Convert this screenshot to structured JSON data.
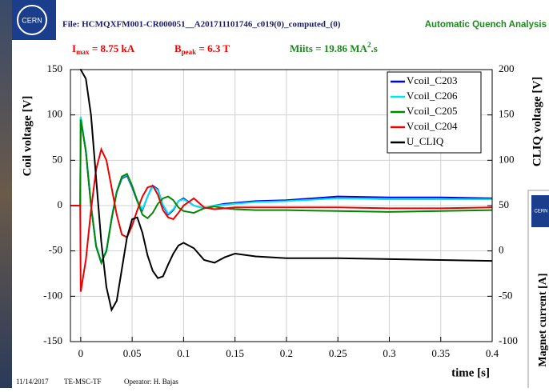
{
  "header": {
    "file": "File: HCMQXFM001-CR000051__A201711101746_c019(0)_computed_(0)",
    "app": "Automatic Quench Analysis",
    "imax": {
      "symbol": "I",
      "subscript": "max",
      "text": " = 8.75 kA"
    },
    "bpeak": {
      "symbol": "B",
      "subscript": "peak",
      "text": " = 6.3 T"
    },
    "miits": {
      "text": "Miits = 19.86 MA",
      "superscript": "2",
      "suffix": ".s"
    },
    "logo": "CERN"
  },
  "footer": {
    "date": "11/14/2017",
    "group": "TE-MSC-TF",
    "operator": "Operator: H. Bajas"
  },
  "background_panel": {
    "y_label": "Magnet current [A]",
    "logo": "CERN"
  },
  "chart_data": {
    "type": "line",
    "y_label": "Coil voltage [V]",
    "y2_label": "CLIQ voltage [V]",
    "x_label": "time [s]",
    "x": [
      -0.01,
      -0.0005,
      0,
      0.005,
      0.01,
      0.015,
      0.02,
      0.025,
      0.03,
      0.035,
      0.04,
      0.045,
      0.05,
      0.055,
      0.06,
      0.065,
      0.07,
      0.075,
      0.08,
      0.085,
      0.09,
      0.095,
      0.1,
      0.11,
      0.12,
      0.13,
      0.14,
      0.15,
      0.17,
      0.2,
      0.25,
      0.3,
      0.35,
      0.4
    ],
    "series": [
      {
        "name": "Vcoil_C203",
        "color": "#0000ee",
        "values": [
          0,
          0,
          97,
          60,
          0,
          -45,
          -63,
          -50,
          -15,
          15,
          30,
          33,
          20,
          5,
          -5,
          10,
          22,
          18,
          0,
          -10,
          -5,
          5,
          8,
          0,
          -3,
          0,
          2,
          3,
          5,
          6,
          10,
          9,
          9,
          8
        ]
      },
      {
        "name": "Vcoil_C206",
        "color": "#00e5ee",
        "values": [
          0,
          0,
          98,
          61,
          1,
          -44,
          -62,
          -49,
          -14,
          16,
          31,
          34,
          21,
          6,
          -4,
          10,
          21,
          17,
          1,
          -9,
          -4,
          5,
          7,
          0,
          -3,
          0,
          1,
          2,
          4,
          5,
          8,
          7,
          7,
          7
        ]
      },
      {
        "name": "Vcoil_C205",
        "color": "#008800",
        "values": [
          0,
          0,
          95,
          60,
          0,
          -45,
          -63,
          -50,
          -15,
          15,
          32,
          35,
          22,
          5,
          -10,
          -14,
          -8,
          2,
          8,
          10,
          6,
          -2,
          -6,
          -8,
          -3,
          -1,
          -3,
          -4,
          -5,
          -5,
          -6,
          -7,
          -6,
          -5
        ]
      },
      {
        "name": "Vcoil_C204",
        "color": "#ee0000",
        "values": [
          0,
          0,
          -95,
          -60,
          -5,
          40,
          62,
          50,
          20,
          -10,
          -32,
          -35,
          -22,
          -5,
          10,
          20,
          22,
          12,
          -5,
          -13,
          -15,
          -8,
          0,
          8,
          -2,
          -4,
          -3,
          -2,
          -2,
          -2,
          -2,
          -3,
          -3,
          -2
        ]
      },
      {
        "name": "U_CLIQ",
        "color": "#000000",
        "axis": "y2",
        "values": [
          null,
          200,
          200,
          190,
          150,
          80,
          10,
          -40,
          -65,
          -55,
          -20,
          15,
          35,
          37,
          20,
          -5,
          -22,
          -30,
          -28,
          -15,
          -3,
          6,
          9,
          3,
          -10,
          -13,
          -7,
          -3,
          -6,
          -8,
          -8,
          -9,
          -10,
          -11
        ]
      }
    ],
    "xlim": [
      -0.01,
      0.4
    ],
    "xticks": [
      0,
      0.05,
      0.1,
      0.15,
      0.2,
      0.25,
      0.3,
      0.35,
      0.4
    ],
    "ylim": [
      -150,
      150
    ],
    "yticks": [
      -150,
      -100,
      -50,
      0,
      50,
      100,
      150
    ],
    "y2lim": [
      -100,
      200
    ],
    "y2ticks": [
      -100,
      -50,
      0,
      50,
      100,
      150,
      200
    ],
    "grid": true,
    "legend": "upper right"
  }
}
